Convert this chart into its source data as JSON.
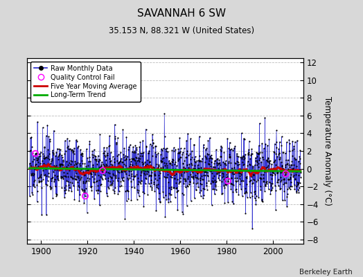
{
  "title": "SAVANNAH 6 SW",
  "subtitle": "35.153 N, 88.321 W (United States)",
  "ylabel": "Temperature Anomaly (°C)",
  "credit": "Berkeley Earth",
  "year_start": 1895,
  "year_end": 2011,
  "ylim": [
    -8.5,
    12.5
  ],
  "yticks": [
    -8,
    -6,
    -4,
    -2,
    0,
    2,
    4,
    6,
    8,
    10,
    12
  ],
  "xticks": [
    1900,
    1920,
    1940,
    1960,
    1980,
    2000
  ],
  "background_color": "#d8d8d8",
  "plot_bg_color": "#ffffff",
  "line_color": "#2222cc",
  "line_fill_color": "#8888ee",
  "ma_color": "#cc0000",
  "trend_color": "#00aa00",
  "qc_color": "#ff00ff",
  "seed": 17
}
